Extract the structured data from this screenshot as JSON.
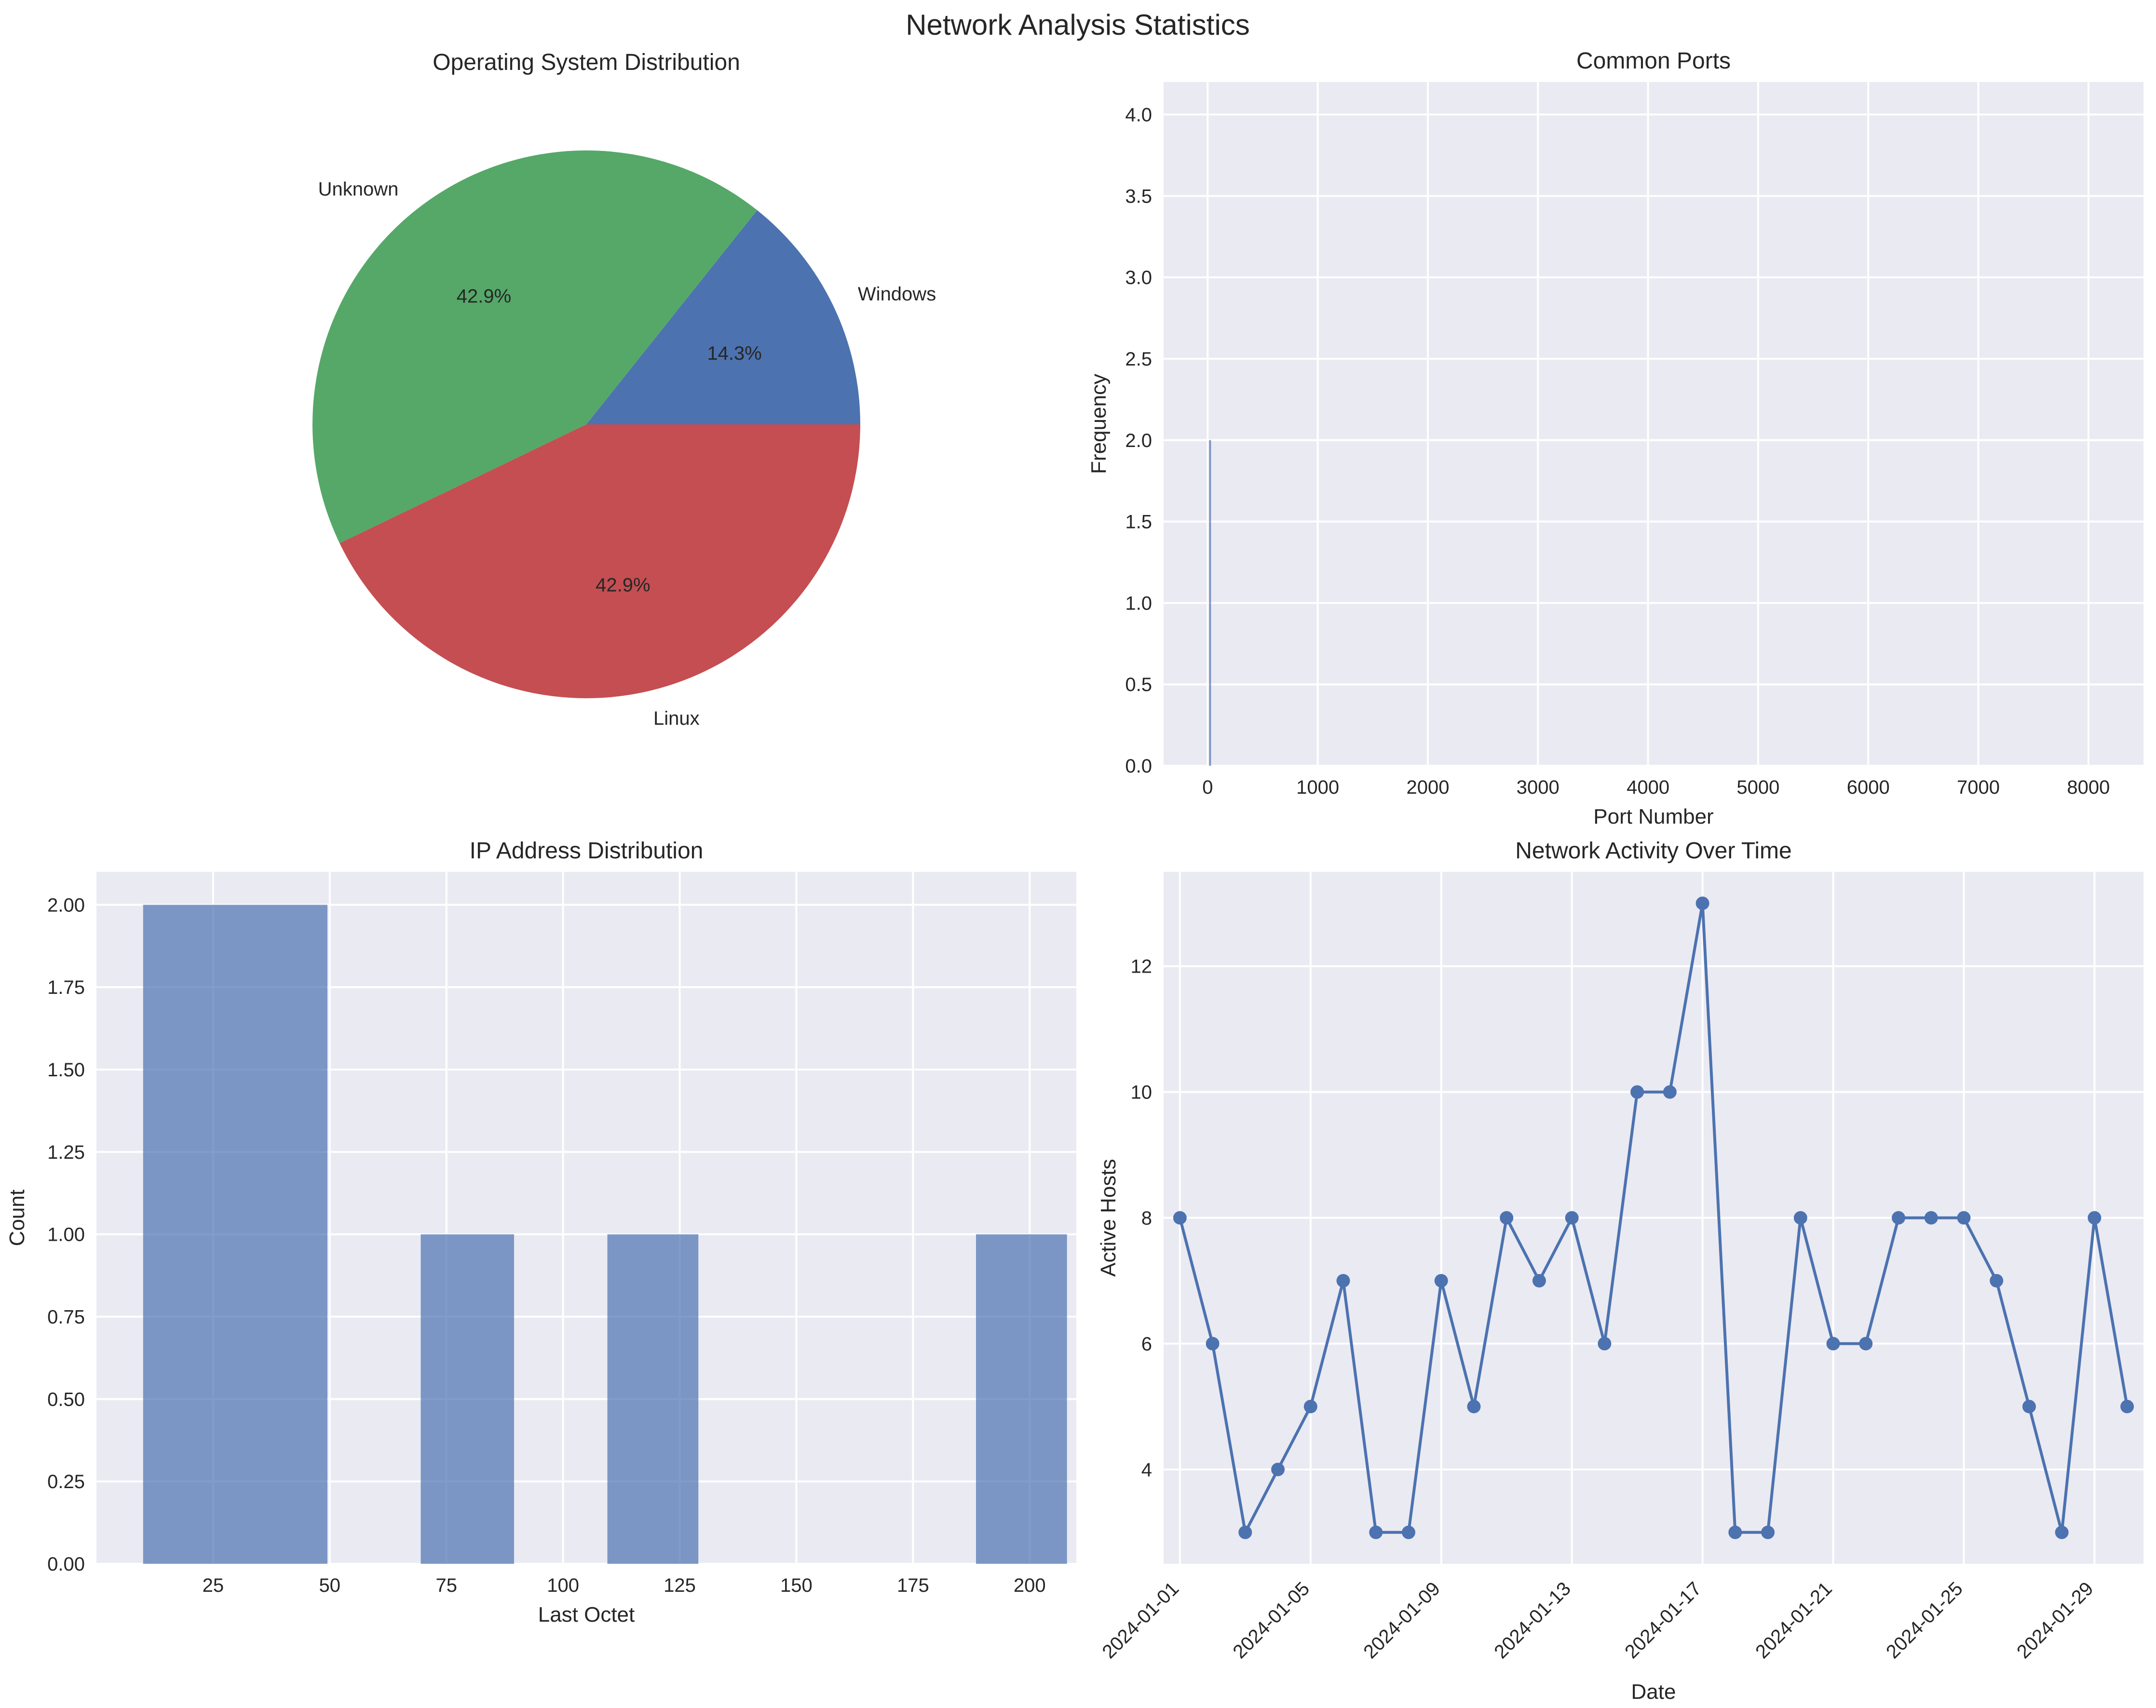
{
  "figure": {
    "title": "Network Analysis Statistics"
  },
  "colors": {
    "panel_bg": "#EAEAF2",
    "grid": "#FFFFFF",
    "text": "#262626",
    "blue": "#4C72B0",
    "green": "#55A868",
    "red": "#C44E52"
  },
  "chart_data": [
    {
      "type": "pie",
      "title": "Operating System Distribution",
      "slices": [
        {
          "label": "Windows",
          "value": 1,
          "pct_label": "14.3%",
          "color": "#4C72B0"
        },
        {
          "label": "Unknown",
          "value": 3,
          "pct_label": "42.9%",
          "color": "#55A868"
        },
        {
          "label": "Linux",
          "value": 3,
          "pct_label": "42.9%",
          "color": "#C44E52"
        }
      ]
    },
    {
      "type": "bar",
      "title": "Common Ports",
      "xlabel": "Port Number",
      "ylabel": "Frequency",
      "xlim": [
        -400,
        8500
      ],
      "ylim": [
        0,
        4.2
      ],
      "xticks": [
        0,
        1000,
        2000,
        3000,
        4000,
        5000,
        6000,
        7000,
        8000
      ],
      "xtick_labels": [
        "0",
        "1000",
        "2000",
        "3000",
        "4000",
        "5000",
        "6000",
        "7000",
        "8000"
      ],
      "yticks": [
        0,
        0.5,
        1.0,
        1.5,
        2.0,
        2.5,
        3.0,
        3.5,
        4.0
      ],
      "ytick_labels": [
        "0.0",
        "0.5",
        "1.0",
        "1.5",
        "2.0",
        "2.5",
        "3.0",
        "3.5",
        "4.0"
      ],
      "bars": [
        {
          "port": 22,
          "value": 2
        }
      ]
    },
    {
      "type": "bar",
      "title": "IP Address Distribution",
      "xlabel": "Last Octet",
      "ylabel": "Count",
      "xlim": [
        0,
        210
      ],
      "ylim": [
        0,
        2.1
      ],
      "xticks": [
        25,
        50,
        75,
        100,
        125,
        150,
        175,
        200
      ],
      "xtick_labels": [
        "25",
        "50",
        "75",
        "100",
        "125",
        "150",
        "175",
        "200"
      ],
      "yticks": [
        0,
        0.25,
        0.5,
        0.75,
        1.0,
        1.25,
        1.5,
        1.75,
        2.0
      ],
      "ytick_labels": [
        "0.00",
        "0.25",
        "0.50",
        "0.75",
        "1.00",
        "1.25",
        "1.50",
        "1.75",
        "2.00"
      ],
      "bins": [
        {
          "start": 10,
          "end": 49.5,
          "count": 2
        },
        {
          "start": 69.5,
          "end": 89.5,
          "count": 1
        },
        {
          "start": 109.5,
          "end": 129,
          "count": 1
        },
        {
          "start": 188.5,
          "end": 208,
          "count": 1
        }
      ]
    },
    {
      "type": "line",
      "title": "Network Activity Over Time",
      "xlabel": "Date",
      "ylabel": "Active Hosts",
      "xlim": [
        0.5,
        30.5
      ],
      "ylim": [
        2.5,
        13.5
      ],
      "yticks": [
        4,
        6,
        8,
        10,
        12
      ],
      "ytick_labels": [
        "4",
        "6",
        "8",
        "10",
        "12"
      ],
      "xticks": [
        1,
        5,
        9,
        13,
        17,
        21,
        25,
        29
      ],
      "xtick_labels": [
        "2024-01-01",
        "2024-01-05",
        "2024-01-09",
        "2024-01-13",
        "2024-01-17",
        "2024-01-21",
        "2024-01-25",
        "2024-01-29"
      ],
      "series": [
        {
          "name": "Active Hosts",
          "x": [
            1,
            2,
            3,
            4,
            5,
            6,
            7,
            8,
            9,
            10,
            11,
            12,
            13,
            14,
            15,
            16,
            17,
            18,
            19,
            20,
            21,
            22,
            23,
            24,
            25,
            26,
            27,
            28,
            29,
            30
          ],
          "values": [
            8,
            6,
            3,
            4,
            5,
            7,
            3,
            3,
            7,
            5,
            8,
            7,
            8,
            6,
            10,
            10,
            13,
            3,
            3,
            8,
            6,
            6,
            8,
            8,
            8,
            7,
            5,
            3,
            8,
            5
          ]
        }
      ]
    }
  ]
}
